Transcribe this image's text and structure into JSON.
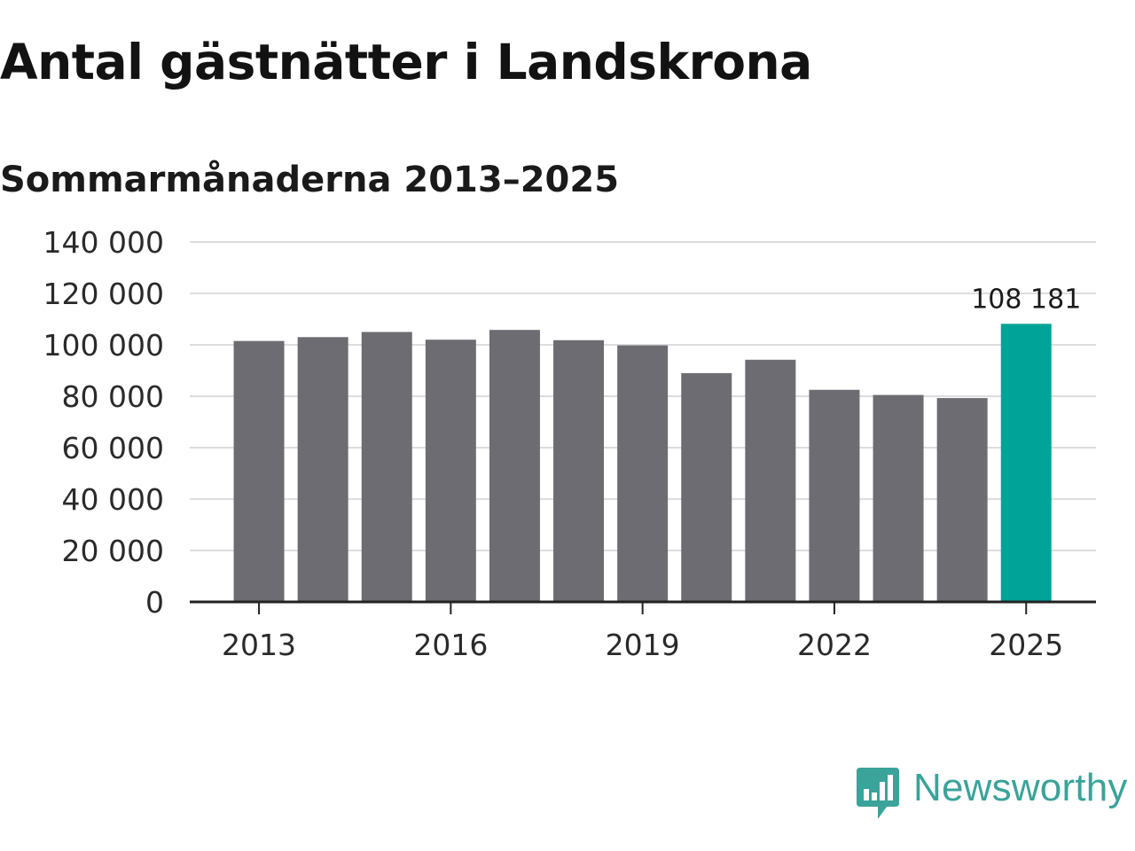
{
  "header": {
    "title": "Antal gästnätter i Landskrona",
    "subtitle": "Sommarmånaderna 2013–2025"
  },
  "branding": {
    "logo_text": "Newsworthy",
    "logo_icon": "newsworthy-chart-bubble-icon",
    "logo_color": "#3aa39a"
  },
  "chart_data": {
    "type": "bar",
    "categories": [
      "2013",
      "2014",
      "2015",
      "2016",
      "2017",
      "2018",
      "2019",
      "2020",
      "2021",
      "2022",
      "2023",
      "2024",
      "2025"
    ],
    "values": [
      101500,
      103000,
      105000,
      102000,
      105800,
      101800,
      99800,
      89000,
      94200,
      82500,
      80500,
      79300,
      108181
    ],
    "x_tick_labels": [
      "2013",
      "2016",
      "2019",
      "2022",
      "2025"
    ],
    "y_tick_labels": [
      "0",
      "20 000",
      "40 000",
      "60 000",
      "80 000",
      "100 000",
      "120 000",
      "140 000"
    ],
    "ylim": [
      0,
      140000
    ],
    "data_labels": [
      {
        "category": "2025",
        "text": "108 181"
      }
    ],
    "highlight_category": "2025",
    "grid": true,
    "colors": {
      "bar": "#6d6c72",
      "highlight": "#00a398",
      "grid": "#dddddd",
      "axis": "#222222"
    },
    "title": "",
    "xlabel": "",
    "ylabel": ""
  }
}
